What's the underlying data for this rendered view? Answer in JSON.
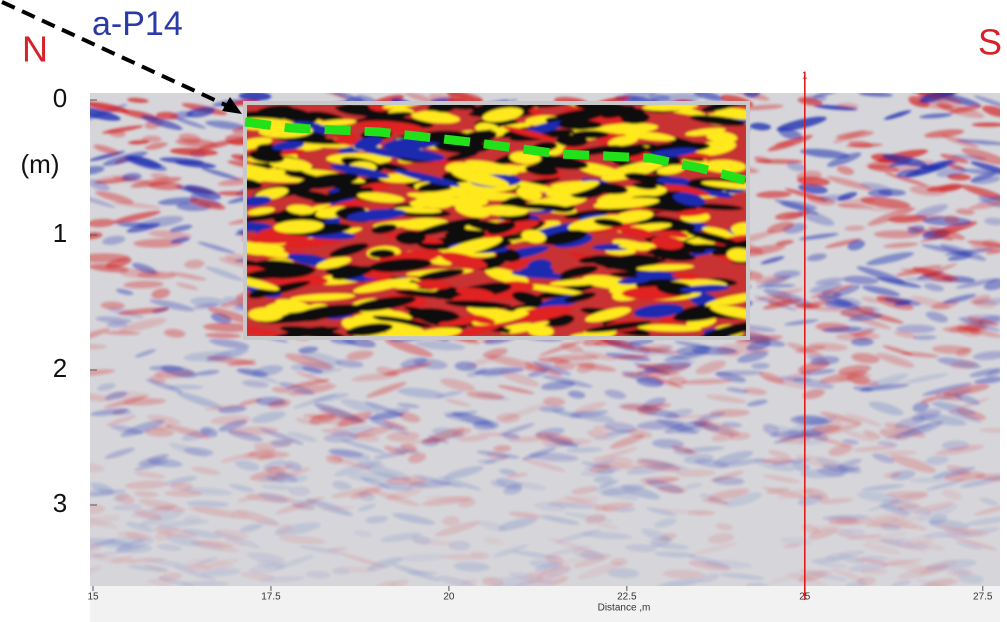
{
  "chart_data": {
    "type": "radargram",
    "title": "a-P14",
    "left_label": "N",
    "right_label": "S",
    "y_label": "(m)",
    "x_label": "Distance ,m",
    "xlim": [
      15,
      27.7
    ],
    "xticks": [
      15,
      17.5,
      20,
      22.5,
      25,
      27.5
    ],
    "ylim": [
      0,
      3.6
    ],
    "yticks": [
      0,
      1,
      2,
      3
    ],
    "marker": {
      "x": 25,
      "label": "1",
      "color": "#e01010"
    }
  }
}
